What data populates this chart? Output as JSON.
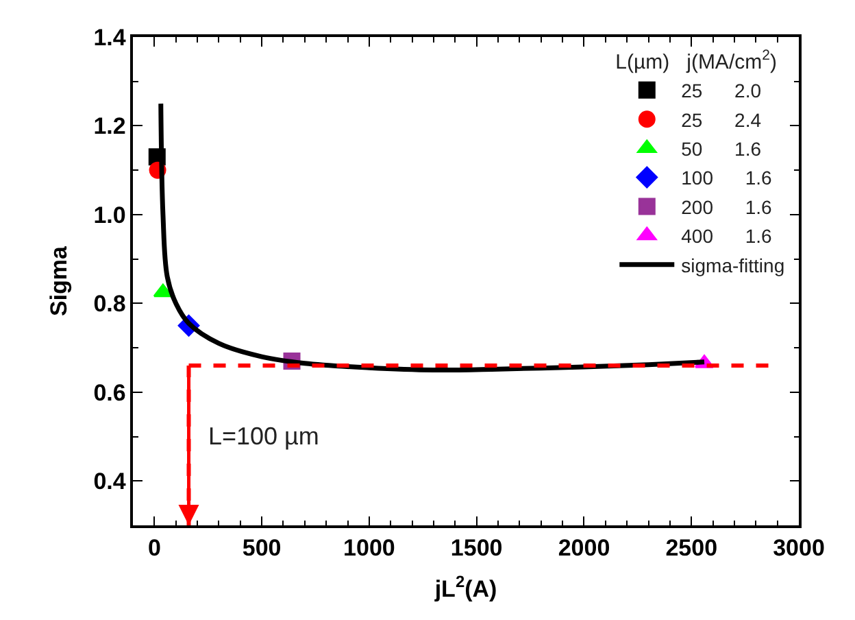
{
  "chart_data": {
    "type": "scatter",
    "xlabel": "jL$^{2}$(A)",
    "ylabel": "Sigma",
    "legend_title": "L(µm)   j(MA/cm$^{2}$)",
    "series": [
      {
        "name": "25      2.0",
        "color": "#000000",
        "marker": "square",
        "x": [
          12.5
        ],
        "values": [
          1.13
        ]
      },
      {
        "name": "25      2.4",
        "color": "#ff0000",
        "marker": "circle",
        "x": [
          15
        ],
        "values": [
          1.1
        ]
      },
      {
        "name": "50      1.6",
        "color": "#00ff00",
        "marker": "triangle",
        "x": [
          40
        ],
        "values": [
          0.825
        ]
      },
      {
        "name": "100      1.6",
        "color": "#0000ff",
        "marker": "diamond",
        "x": [
          160
        ],
        "values": [
          0.75
        ]
      },
      {
        "name": "200      1.6",
        "color": "#993399",
        "marker": "square",
        "x": [
          640
        ],
        "values": [
          0.67
        ]
      },
      {
        "name": "400      1.6",
        "color": "#ff00ff",
        "marker": "triangle",
        "x": [
          2560
        ],
        "values": [
          0.665
        ]
      },
      {
        "name": "sigma-fitting",
        "type": "line",
        "color": "#000000",
        "marker": "none",
        "line_style": "solid",
        "x": [
          30,
          40,
          60,
          100,
          160,
          300,
          500,
          700,
          1000,
          1300,
          1600,
          2000,
          2300,
          2560
        ],
        "values": [
          1.25,
          1.0,
          0.86,
          0.8,
          0.755,
          0.71,
          0.68,
          0.665,
          0.655,
          0.65,
          0.652,
          0.657,
          0.662,
          0.668
        ]
      }
    ],
    "ref_lines": [
      {
        "axis": "x",
        "value": 160,
        "color": "#ff0000",
        "line_style": "dashed"
      },
      {
        "axis": "y",
        "value": 0.66,
        "color": "#ff0000",
        "line_style": "dashed"
      }
    ],
    "annotations": [
      "L=100 µm"
    ],
    "xlim": [
      -100,
      3000
    ],
    "xticks": [
      0,
      500,
      1000,
      1500,
      2000,
      2500,
      3000
    ],
    "ylim": [
      0.3,
      1.4
    ],
    "yticks": [
      0.4,
      0.6,
      0.8,
      {
        "value": 1,
        "label": "1.0"
      },
      1.2,
      1.4
    ],
    "legend": "top right"
  }
}
